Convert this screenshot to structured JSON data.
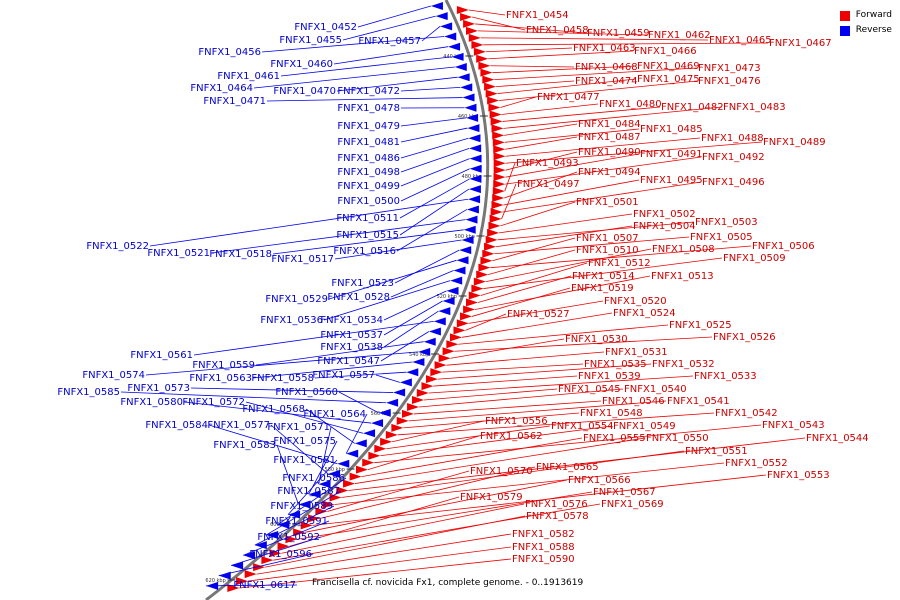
{
  "legend": [
    {
      "label": "Forward",
      "color": "#ee0000"
    },
    {
      "label": "Reverse",
      "color": "#0000ee"
    }
  ],
  "caption": "Francisella cf. novicida Fx1, complete genome. - 0..1913619",
  "backbone_color": "#777777",
  "ticks": [
    "440 kbp",
    "460 kbp",
    "480 kbp",
    "500 kbp",
    "520 kbp",
    "540 kbp",
    "560 kbp",
    "580 kbp",
    "600 kbp",
    "620 kbp"
  ],
  "forward_genes": [
    "FNFX1_0454",
    "FNFX1_0458",
    "FNFX1_0459",
    "FNFX1_0462",
    "FNFX1_0465",
    "FNFX1_0467",
    "FNFX1_0463",
    "FNFX1_0466",
    "FNFX1_0468",
    "FNFX1_0469",
    "FNFX1_0473",
    "FNFX1_0474",
    "FNFX1_0475",
    "FNFX1_0476",
    "FNFX1_0477",
    "FNFX1_0480",
    "FNFX1_0482",
    "FNFX1_0483",
    "FNFX1_0484",
    "FNFX1_0485",
    "FNFX1_0487",
    "FNFX1_0488",
    "FNFX1_0489",
    "FNFX1_0490",
    "FNFX1_0491",
    "FNFX1_0492",
    "FNFX1_0493",
    "FNFX1_0494",
    "FNFX1_0495",
    "FNFX1_0496",
    "FNFX1_0497",
    "FNFX1_0501",
    "FNFX1_0502",
    "FNFX1_0503",
    "FNFX1_0504",
    "FNFX1_0505",
    "FNFX1_0507",
    "FNFX1_0506",
    "FNFX1_0510",
    "FNFX1_0508",
    "FNFX1_0509",
    "FNFX1_0512",
    "FNFX1_0514",
    "FNFX1_0513",
    "FNFX1_0519",
    "FNFX1_0520",
    "FNFX1_0527",
    "FNFX1_0524",
    "FNFX1_0525",
    "FNFX1_0526",
    "FNFX1_0530",
    "FNFX1_0531",
    "FNFX1_0535",
    "FNFX1_0532",
    "FNFX1_0539",
    "FNFX1_0533",
    "FNFX1_0545",
    "FNFX1_0540",
    "FNFX1_0546",
    "FNFX1_0541",
    "FNFX1_0548",
    "FNFX1_0542",
    "FNFX1_0556",
    "FNFX1_0554",
    "FNFX1_0549",
    "FNFX1_0543",
    "FNFX1_0562",
    "FNFX1_0555",
    "FNFX1_0550",
    "FNFX1_0544",
    "FNFX1_0551",
    "FNFX1_0552",
    "FNFX1_0570",
    "FNFX1_0565",
    "FNFX1_0553",
    "FNFX1_0566",
    "FNFX1_0567",
    "FNFX1_0579",
    "FNFX1_0576",
    "FNFX1_0569",
    "FNFX1_0578",
    "FNFX1_0582",
    "FNFX1_0588",
    "FNFX1_0590"
  ],
  "reverse_genes": [
    "FNFX1_0452",
    "FNFX1_0455",
    "FNFX1_0457",
    "FNFX1_0456",
    "FNFX1_0460",
    "FNFX1_0461",
    "FNFX1_0464",
    "FNFX1_0470",
    "FNFX1_0472",
    "FNFX1_0471",
    "FNFX1_0478",
    "FNFX1_0479",
    "FNFX1_0481",
    "FNFX1_0486",
    "FNFX1_0498",
    "FNFX1_0499",
    "FNFX1_0500",
    "FNFX1_0511",
    "FNFX1_0515",
    "FNFX1_0522",
    "FNFX1_0516",
    "FNFX1_0521",
    "FNFX1_0518",
    "FNFX1_0517",
    "FNFX1_0523",
    "FNFX1_0529",
    "FNFX1_0528",
    "FNFX1_0536",
    "FNFX1_0534",
    "FNFX1_0537",
    "FNFX1_0538",
    "FNFX1_0561",
    "FNFX1_0547",
    "FNFX1_0559",
    "FNFX1_0574",
    "FNFX1_0563",
    "FNFX1_0558",
    "FNFX1_0557",
    "FNFX1_0573",
    "FNFX1_0585",
    "FNFX1_0560",
    "FNFX1_0580",
    "FNFX1_0572",
    "FNFX1_0568",
    "FNFX1_0564",
    "FNFX1_0584",
    "FNFX1_0577",
    "FNFX1_0571",
    "FNFX1_0575",
    "FNFX1_0583",
    "FNFX1_0581",
    "FNFX1_0586",
    "FNFX1_0587",
    "FNFX1_0589",
    "FNFX1_0591",
    "FNFX1_0592",
    "FNFX1_0596",
    "FNFX1_0617"
  ]
}
